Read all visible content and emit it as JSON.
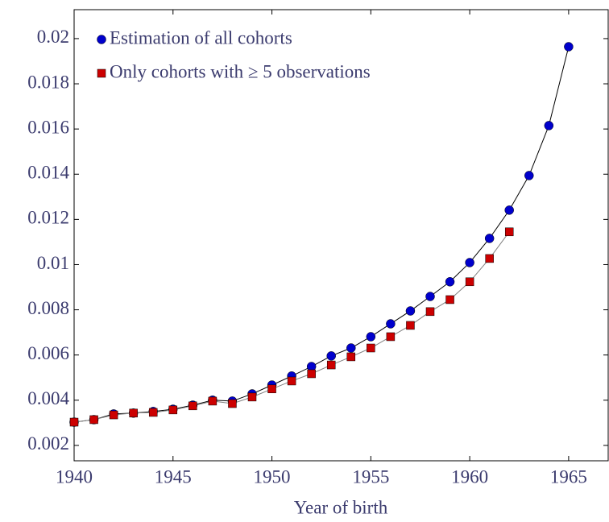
{
  "chart_data": {
    "type": "line",
    "xlabel": "Year of birth",
    "x": [
      1940,
      1941,
      1942,
      1943,
      1944,
      1945,
      1946,
      1947,
      1948,
      1949,
      1950,
      1951,
      1952,
      1953,
      1954,
      1955,
      1956,
      1957,
      1958,
      1959,
      1960,
      1961,
      1962,
      1963,
      1964,
      1965
    ],
    "series": [
      {
        "name": "Estimation of all cohorts",
        "color": "#0000cc",
        "line_color": "#000000",
        "marker": "circle",
        "values": [
          0.00303,
          0.00314,
          0.00339,
          0.00343,
          0.0035,
          0.0036,
          0.00378,
          0.004,
          0.00396,
          0.00428,
          0.00467,
          0.00507,
          0.00549,
          0.00596,
          0.00631,
          0.00681,
          0.00738,
          0.00795,
          0.00859,
          0.00924,
          0.01009,
          0.01116,
          0.01241,
          0.01394,
          0.01615,
          0.01964
        ]
      },
      {
        "name": "Only cohorts with ≥ 5 observations",
        "color": "#cc0000",
        "line_color": "#808080",
        "marker": "square",
        "values": [
          0.00303,
          0.00314,
          0.00335,
          0.00343,
          0.00346,
          0.00357,
          0.00375,
          0.00396,
          0.00385,
          0.00414,
          0.0045,
          0.00485,
          0.00517,
          0.00556,
          0.00592,
          0.00631,
          0.00681,
          0.00731,
          0.00792,
          0.00845,
          0.00924,
          0.01027,
          0.01145,
          null,
          null,
          null
        ]
      }
    ],
    "xlim": [
      1940,
      1967
    ],
    "xticks": [
      1940,
      1945,
      1950,
      1955,
      1960,
      1965
    ],
    "ylim": [
      0.00132,
      0.02128
    ],
    "yticks": [
      0.002,
      0.004,
      0.006,
      0.008,
      0.01,
      0.012,
      0.014,
      0.016,
      0.018,
      0.02
    ],
    "grid": false,
    "legend": "upper left"
  }
}
